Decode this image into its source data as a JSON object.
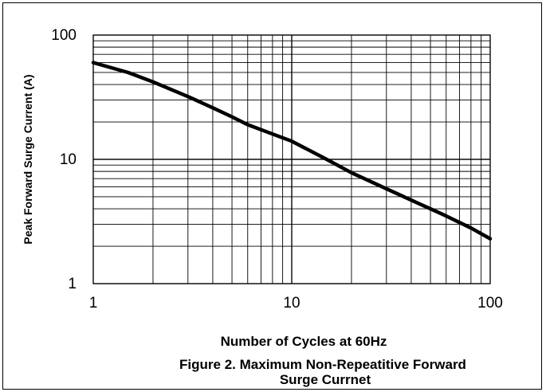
{
  "chart_data": {
    "type": "line",
    "x_scale": "log",
    "y_scale": "log",
    "xlim": [
      1,
      100
    ],
    "ylim": [
      1,
      100
    ],
    "x_ticks": [
      "1",
      "10",
      "100"
    ],
    "y_ticks": [
      "100",
      "10",
      "1"
    ],
    "ylabel": "Peak Forward Surge Current (A)",
    "xlabel": "Number of Cycles at 60Hz",
    "caption_line1": "Figure 2. Maximum Non-Repeatitive Forward",
    "caption_line2": "Surge Currnet",
    "grid": true,
    "series": [
      {
        "x": [
          1,
          1.5,
          2,
          3,
          4,
          5,
          6,
          8,
          10,
          15,
          20,
          30,
          40,
          50,
          60,
          80,
          100
        ],
        "values": [
          60,
          50,
          42,
          32,
          26,
          22,
          19,
          16,
          14,
          10,
          7.8,
          5.8,
          4.7,
          4.0,
          3.5,
          2.8,
          2.3
        ]
      }
    ],
    "line_color": "#000000"
  }
}
